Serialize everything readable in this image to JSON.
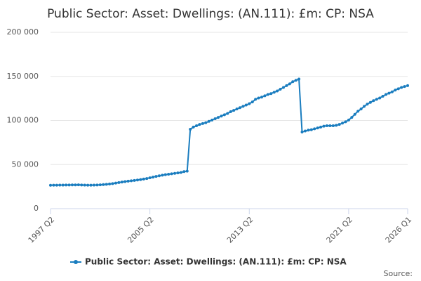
{
  "chart_data": {
    "type": "line",
    "title": "Public Sector: Asset: Dwellings: (AN.111): £m: CP: NSA",
    "source": "Source:",
    "categories": [
      "1997 Q2",
      null,
      null,
      null,
      null,
      null,
      null,
      null,
      null,
      null,
      null,
      null,
      null,
      null,
      null,
      null,
      null,
      null,
      null,
      null,
      null,
      null,
      null,
      null,
      null,
      null,
      null,
      null,
      null,
      null,
      null,
      null,
      "2005 Q2",
      null,
      null,
      null,
      null,
      null,
      null,
      null,
      null,
      null,
      null,
      null,
      null,
      null,
      null,
      null,
      null,
      null,
      null,
      null,
      null,
      null,
      null,
      null,
      null,
      null,
      null,
      null,
      null,
      null,
      null,
      null,
      "2013 Q2",
      null,
      null,
      null,
      null,
      null,
      null,
      null,
      null,
      null,
      null,
      null,
      null,
      null,
      null,
      null,
      null,
      null,
      null,
      null,
      null,
      null,
      null,
      null,
      null,
      null,
      null,
      null,
      null,
      null,
      null,
      null,
      "2021 Q2",
      null,
      null,
      null,
      null,
      null,
      null,
      null,
      null,
      null,
      null,
      null,
      null,
      null,
      null,
      null,
      null,
      null,
      null,
      "2026 Q1"
    ],
    "series": [
      {
        "name": "Public Sector: Asset: Dwellings: (AN.111): £m: CP: NSA",
        "color": "#1a7dbf",
        "values": [
          26500,
          26600,
          26600,
          26700,
          26700,
          26800,
          26800,
          26900,
          26900,
          27000,
          26800,
          26700,
          26600,
          26600,
          26700,
          26800,
          27000,
          27300,
          27600,
          28000,
          28400,
          29000,
          29600,
          30200,
          30700,
          31200,
          31600,
          32000,
          32500,
          33000,
          33600,
          34200,
          35000,
          35800,
          36600,
          37300,
          37900,
          38500,
          39000,
          39500,
          40000,
          40500,
          41000,
          42000,
          42500,
          90000,
          92500,
          94000,
          95500,
          96500,
          97500,
          99000,
          100500,
          102000,
          103500,
          105000,
          106500,
          108000,
          110000,
          111500,
          113000,
          114500,
          116000,
          117500,
          119000,
          121000,
          124000,
          125500,
          126500,
          128000,
          129500,
          130500,
          132000,
          133500,
          135500,
          137500,
          139500,
          141500,
          144000,
          145500,
          147000,
          87000,
          88000,
          89000,
          89500,
          90500,
          91500,
          92500,
          93500,
          94000,
          94000,
          94000,
          94500,
          95500,
          97000,
          98500,
          100500,
          103500,
          107000,
          110500,
          113000,
          116000,
          118500,
          120500,
          122500,
          124000,
          125500,
          127500,
          129500,
          131000,
          132500,
          134500,
          136000,
          137500,
          138500,
          139500
        ]
      }
    ],
    "ylim": [
      0,
      200000
    ],
    "yticks": [
      0,
      {
        "value": 50000,
        "label": "50 000"
      },
      {
        "value": 100000,
        "label": "100 000"
      },
      {
        "value": 150000,
        "label": "150 000"
      },
      {
        "value": 200000,
        "label": "200 000"
      }
    ],
    "grid": true
  }
}
